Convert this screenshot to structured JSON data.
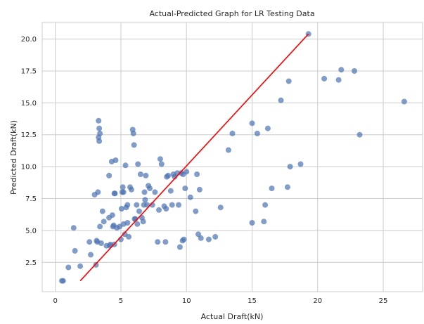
{
  "chart_data": {
    "type": "scatter",
    "title": "Actual-Predicted Graph for LR Testing Data",
    "xlabel": "Actual Draft(kN)",
    "ylabel": "Predicted Draft(kN)",
    "xlim": [
      -1.0,
      28.0
    ],
    "ylim": [
      0.2,
      21.3
    ],
    "xticks": [
      0,
      5,
      10,
      15,
      20,
      25
    ],
    "yticks": [
      2.5,
      5.0,
      7.5,
      10.0,
      12.5,
      15.0,
      17.5,
      20.0
    ],
    "xtick_labels": [
      "0",
      "5",
      "10",
      "15",
      "20",
      "25"
    ],
    "ytick_labels": [
      "2.5",
      "5.0",
      "7.5",
      "10.0",
      "12.5",
      "15.0",
      "17.5",
      "20.0"
    ],
    "grid": true,
    "legend": "none",
    "colors": {
      "points": "#4c72b0",
      "line": "#ff0000",
      "grid": "#cccccc",
      "background": "#ffffff"
    },
    "series": [
      {
        "kind": "points",
        "x": [
          0.5,
          0.6,
          1.0,
          1.4,
          1.5,
          1.9,
          2.6,
          2.7,
          3.0,
          3.1,
          3.15,
          3.2,
          3.25,
          3.3,
          3.3,
          3.35,
          3.35,
          3.4,
          3.4,
          3.5,
          3.6,
          3.7,
          3.9,
          4.1,
          4.1,
          4.15,
          4.2,
          4.3,
          4.35,
          4.4,
          4.45,
          4.5,
          4.5,
          4.55,
          4.6,
          4.7,
          4.9,
          5.0,
          5.05,
          5.1,
          5.15,
          5.2,
          5.2,
          5.3,
          5.35,
          5.4,
          5.5,
          5.5,
          5.6,
          5.7,
          5.8,
          5.9,
          5.95,
          6.0,
          6.05,
          6.1,
          6.2,
          6.25,
          6.3,
          6.4,
          6.5,
          6.6,
          6.7,
          6.75,
          6.8,
          6.85,
          6.9,
          7.0,
          7.1,
          7.2,
          7.4,
          7.6,
          7.8,
          7.9,
          8.0,
          8.1,
          8.3,
          8.4,
          8.45,
          8.5,
          8.6,
          8.8,
          8.9,
          9.0,
          9.1,
          9.3,
          9.4,
          9.5,
          9.6,
          9.7,
          9.75,
          9.8,
          9.9,
          10.0,
          10.3,
          10.7,
          10.8,
          10.9,
          11.0,
          11.1,
          11.7,
          12.2,
          12.6,
          13.2,
          13.5,
          15.0,
          15.0,
          15.4,
          15.9,
          16.0,
          16.2,
          16.5,
          17.2,
          17.7,
          17.8,
          17.9,
          18.7,
          19.3,
          20.5,
          21.6,
          21.8,
          22.8,
          23.2,
          26.6
        ],
        "y": [
          1.05,
          1.05,
          2.1,
          5.2,
          3.4,
          2.2,
          4.1,
          3.1,
          7.8,
          2.3,
          4.2,
          4.1,
          8.0,
          12.3,
          13.6,
          12.0,
          13.0,
          5.3,
          12.6,
          4.0,
          6.5,
          5.7,
          3.8,
          9.3,
          6.0,
          3.8,
          3.9,
          10.4,
          6.2,
          5.3,
          5.4,
          7.9,
          3.9,
          7.9,
          10.5,
          5.2,
          5.3,
          4.3,
          6.7,
          8.0,
          8.4,
          5.5,
          8.0,
          4.7,
          10.1,
          6.8,
          5.6,
          7.0,
          4.5,
          8.4,
          8.2,
          12.9,
          12.6,
          11.7,
          5.9,
          5.9,
          7.0,
          5.5,
          10.2,
          6.5,
          9.4,
          6.0,
          5.7,
          7.0,
          8.0,
          7.4,
          9.3,
          7.0,
          8.5,
          8.3,
          7.0,
          8.0,
          4.1,
          6.6,
          10.6,
          10.2,
          6.9,
          4.1,
          6.7,
          9.2,
          9.3,
          8.1,
          7.0,
          9.4,
          9.2,
          9.5,
          7.0,
          3.7,
          9.5,
          4.2,
          9.4,
          4.3,
          8.3,
          9.6,
          7.6,
          6.5,
          9.4,
          4.7,
          8.2,
          4.4,
          4.3,
          4.5,
          6.8,
          11.3,
          12.6,
          5.6,
          13.4,
          12.6,
          5.7,
          7.0,
          13.0,
          8.3,
          15.2,
          8.4,
          16.7,
          10.0,
          10.2,
          20.4,
          16.9,
          16.8,
          17.6,
          17.5,
          12.5,
          15.1
        ]
      },
      {
        "kind": "line",
        "x": [
          1.9,
          19.3
        ],
        "y": [
          1.05,
          20.4
        ]
      }
    ]
  }
}
